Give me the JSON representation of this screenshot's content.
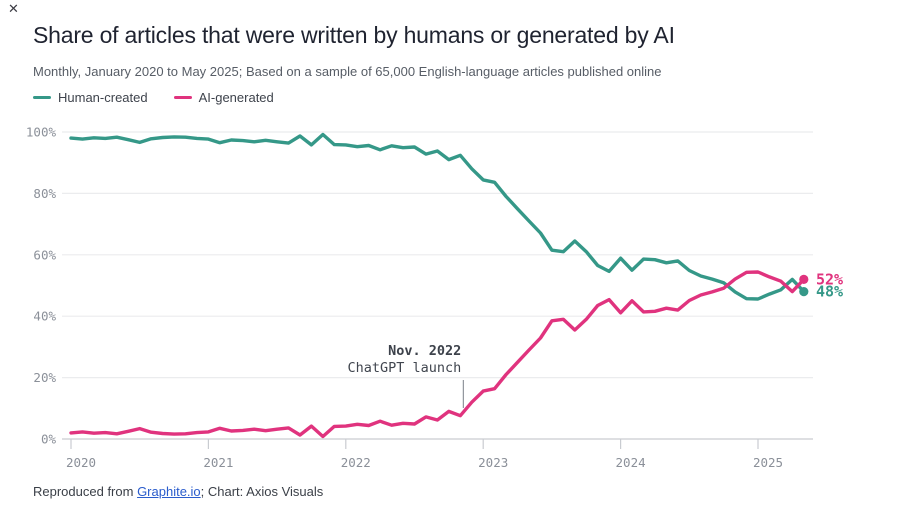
{
  "window": {
    "close_icon": "✕"
  },
  "header": {
    "title": "Share of articles that were written by humans or generated by AI",
    "subtitle": "Monthly, January 2020 to May 2025; Based on a sample of 65,000 English-language articles published online"
  },
  "legend": [
    {
      "label": "Human-created",
      "color": "#359888"
    },
    {
      "label": "AI-generated",
      "color": "#e0337e"
    }
  ],
  "footer": {
    "prefix": "Reproduced from ",
    "link_text": "Graphite.io",
    "suffix": "; Chart: Axios Visuals"
  },
  "colors": {
    "human": "#359888",
    "ai": "#e0337e",
    "grid": "#ebecee",
    "axis": "#c9ccd1",
    "tick_text": "#8b9099",
    "annotation_text": "#41464f"
  },
  "chart_data": {
    "type": "line",
    "title": "Share of articles that were written by humans or generated by AI",
    "x_unit": "month",
    "x_start": "2020-01",
    "x_end": "2025-05",
    "xticks": [
      "2020",
      "2021",
      "2022",
      "2023",
      "2024",
      "2025"
    ],
    "xtick_month_offsets": [
      0,
      12,
      24,
      36,
      48,
      60
    ],
    "yticks": [
      "0%",
      "20%",
      "40%",
      "60%",
      "80%",
      "100%"
    ],
    "ytick_values": [
      0,
      20,
      40,
      60,
      80,
      100
    ],
    "ylim": [
      0,
      100
    ],
    "grid": true,
    "legend_position": "top-left",
    "series": [
      {
        "name": "Human-created",
        "color": "#359888",
        "end_label": "48%",
        "values": [
          98.0,
          97.7,
          98.1,
          97.9,
          98.3,
          97.5,
          96.6,
          97.8,
          98.2,
          98.4,
          98.3,
          97.9,
          97.7,
          96.5,
          97.4,
          97.2,
          96.8,
          97.3,
          96.8,
          96.4,
          98.7,
          95.8,
          99.2,
          95.9,
          95.8,
          95.2,
          95.6,
          94.2,
          95.5,
          94.9,
          95.1,
          92.8,
          93.8,
          91.0,
          92.4,
          88.0,
          84.4,
          83.6,
          79.0,
          75.0,
          71.0,
          67.1,
          61.5,
          61.0,
          64.5,
          61.0,
          56.5,
          54.6,
          58.9,
          55.0,
          58.6,
          58.4,
          57.4,
          58.0,
          54.9,
          53.1,
          52.1,
          50.9,
          47.9,
          45.7,
          45.6,
          47.2,
          48.6,
          52.0,
          48.0
        ]
      },
      {
        "name": "AI-generated",
        "color": "#e0337e",
        "end_label": "52%",
        "values": [
          2.0,
          2.3,
          1.9,
          2.1,
          1.7,
          2.5,
          3.4,
          2.2,
          1.8,
          1.6,
          1.7,
          2.1,
          2.3,
          3.5,
          2.6,
          2.8,
          3.2,
          2.7,
          3.2,
          3.6,
          1.3,
          4.2,
          0.8,
          4.1,
          4.2,
          4.8,
          4.4,
          5.8,
          4.5,
          5.1,
          4.9,
          7.2,
          6.2,
          9.0,
          7.6,
          12.0,
          15.6,
          16.4,
          21.0,
          25.0,
          29.0,
          32.9,
          38.5,
          39.0,
          35.5,
          39.0,
          43.5,
          45.4,
          41.1,
          45.0,
          41.4,
          41.6,
          42.6,
          42.0,
          45.1,
          46.9,
          47.9,
          49.1,
          52.1,
          54.3,
          54.4,
          52.8,
          51.4,
          48.0,
          52.0
        ]
      }
    ],
    "annotation": {
      "line1": "Nov. 2022",
      "line2": "ChatGPT launch",
      "x_month": 34
    }
  }
}
